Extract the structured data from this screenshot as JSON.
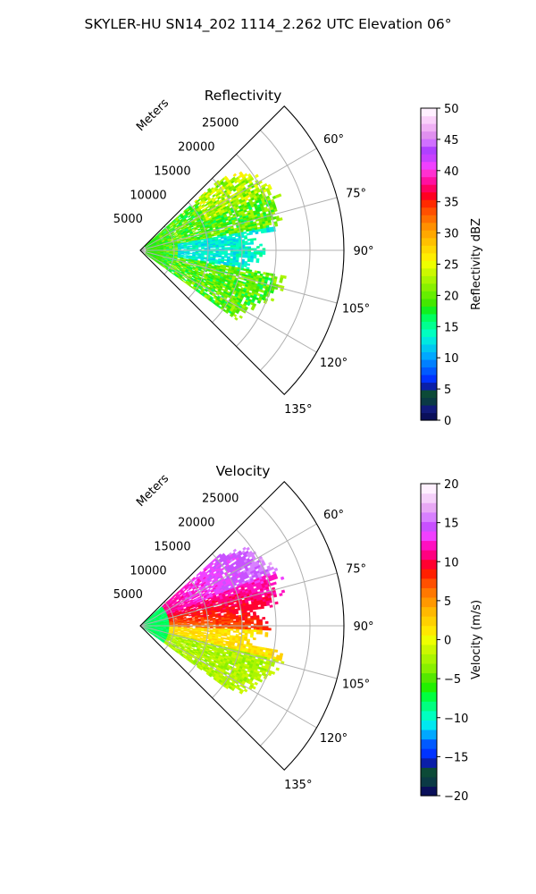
{
  "suptitle": "SKYLER-HU  SN14_202  1114_2.262 UTC Elevation 06°",
  "chart_data": [
    {
      "type": "heatmap",
      "projection": "polar-sector",
      "title": "Reflectivity",
      "radial_label": "Meters",
      "radial_ticks": [
        5000,
        10000,
        15000,
        20000,
        25000
      ],
      "radial_tick_labels": [
        "5000",
        "10000",
        "15000",
        "20000",
        "25000"
      ],
      "r_max": 30000,
      "azimuth_range_deg": [
        45,
        135
      ],
      "azimuth_ticks_deg": [
        60,
        75,
        90,
        105,
        120,
        135
      ],
      "azimuth_tick_labels": [
        "60°",
        "75°",
        "90°",
        "105°",
        "120°",
        "135°"
      ],
      "grid": true,
      "colorbar": {
        "label": "Reflectivity dBZ",
        "min": 0,
        "max": 50,
        "ticks": [
          0,
          5,
          10,
          15,
          20,
          25,
          30,
          35,
          40,
          45,
          50
        ],
        "tick_labels": [
          "0",
          "5",
          "10",
          "15",
          "20",
          "25",
          "30",
          "35",
          "40",
          "45",
          "50"
        ],
        "colors": [
          "#0a0f5a",
          "#111a7a",
          "#0b3a45",
          "#0c4a37",
          "#0a1fa8",
          "#0033ff",
          "#005aff",
          "#0080ff",
          "#00a8ff",
          "#00c8f0",
          "#00e8e0",
          "#00ffc0",
          "#00ff90",
          "#00ff60",
          "#11f020",
          "#44e800",
          "#66ee00",
          "#88f000",
          "#aaf500",
          "#ccf800",
          "#eeff00",
          "#ffee00",
          "#ffd800",
          "#ffc000",
          "#ffa800",
          "#ff9000",
          "#ff7000",
          "#ff5000",
          "#ff2a00",
          "#ff0020",
          "#ff0060",
          "#ff10a0",
          "#ff30d0",
          "#f040ff",
          "#c840ff",
          "#b040ff",
          "#d070ff",
          "#e090ef",
          "#f0b0f5",
          "#fad0fa",
          "#fff0ff"
        ]
      },
      "data_summary": [
        {
          "azimuth_deg": [
            58,
            78
          ],
          "range_m": [
            2000,
            21000
          ],
          "value": 18,
          "note": "green echoes"
        },
        {
          "azimuth_deg": [
            78,
            100
          ],
          "range_m": [
            5000,
            19000
          ],
          "value": 12,
          "note": "cyan weak echoes"
        },
        {
          "azimuth_deg": [
            100,
            124
          ],
          "range_m": [
            3000,
            19000
          ],
          "value": 18,
          "note": "green echoes"
        },
        {
          "azimuth_deg": [
            50,
            64
          ],
          "range_m": [
            8000,
            20000
          ],
          "value": 22,
          "note": "yellow-green peaks"
        }
      ]
    },
    {
      "type": "heatmap",
      "projection": "polar-sector",
      "title": "Velocity",
      "radial_label": "Meters",
      "radial_ticks": [
        5000,
        10000,
        15000,
        20000,
        25000
      ],
      "radial_tick_labels": [
        "5000",
        "10000",
        "15000",
        "20000",
        "25000"
      ],
      "r_max": 30000,
      "azimuth_range_deg": [
        45,
        135
      ],
      "azimuth_ticks_deg": [
        60,
        75,
        90,
        105,
        120,
        135
      ],
      "azimuth_tick_labels": [
        "60°",
        "75°",
        "90°",
        "105°",
        "120°",
        "135°"
      ],
      "grid": true,
      "colorbar": {
        "label": "Velocity (m/s)",
        "min": -20,
        "max": 20,
        "ticks": [
          -20,
          -15,
          -10,
          -5,
          0,
          5,
          10,
          15,
          20
        ],
        "tick_labels": [
          "−20",
          "−15",
          "−10",
          "−5",
          "0",
          "5",
          "10",
          "15",
          "20"
        ],
        "colors": [
          "#0a0f5a",
          "#0b3a45",
          "#0c4a37",
          "#0a1fa8",
          "#0033ff",
          "#005aff",
          "#00a8ff",
          "#00e8f0",
          "#00ffc0",
          "#00ff80",
          "#00ff40",
          "#22f000",
          "#55e800",
          "#88f000",
          "#aaf500",
          "#ccf800",
          "#eeff00",
          "#ffe800",
          "#ffd000",
          "#ffb800",
          "#ff9800",
          "#ff7800",
          "#ff5000",
          "#ff2000",
          "#ff0030",
          "#ff0080",
          "#ff10c0",
          "#f040ff",
          "#c850ff",
          "#d880ff",
          "#e8a8f5",
          "#f5d0fa",
          "#fff0ff"
        ]
      },
      "data_summary": [
        {
          "azimuth_deg": [
            48,
            68
          ],
          "range_m": [
            12000,
            22000
          ],
          "value": 13,
          "note": "magenta outbound"
        },
        {
          "azimuth_deg": [
            68,
            95
          ],
          "range_m": [
            8000,
            21000
          ],
          "value": 9,
          "note": "red outbound"
        },
        {
          "azimuth_deg": [
            85,
            105
          ],
          "range_m": [
            8000,
            18000
          ],
          "value": 2,
          "note": "yellow"
        },
        {
          "azimuth_deg": [
            100,
            124
          ],
          "range_m": [
            3000,
            19000
          ],
          "value": -4,
          "note": "green"
        },
        {
          "azimuth_deg": [
            55,
            125
          ],
          "range_m": [
            0,
            4000
          ],
          "value": -9,
          "note": "teal near radar"
        }
      ]
    }
  ]
}
